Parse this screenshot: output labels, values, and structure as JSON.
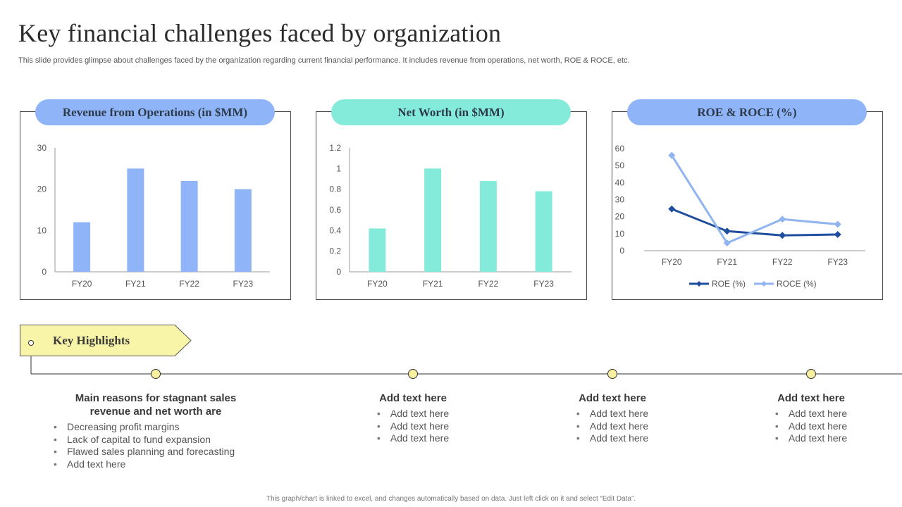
{
  "page": {
    "title": "Key financial challenges  faced by organization",
    "subtitle": "This slide provides glimpse about challenges faced by the organization regarding current financial performance. It includes revenue from operations, net worth, ROE & ROCE, etc.",
    "footer": "This graph/chart is linked to excel, and changes automatically based on data. Just left click on it and select “Edit Data”."
  },
  "colors": {
    "revenue_bar": "#8fb4f8",
    "networth_bar": "#84ebda",
    "roe_line": "#1f4e9e",
    "roce_line": "#8fb4f0",
    "pill_blue": "#8fb4f8",
    "pill_teal": "#84ebda",
    "highlight_yellow": "#f8f4a8"
  },
  "chart_data": [
    {
      "type": "bar",
      "title": "Revenue from Operations (in $MM)",
      "categories": [
        "FY20",
        "FY21",
        "FY22",
        "FY23"
      ],
      "values": [
        12,
        25,
        22,
        20
      ],
      "ylim": [
        0,
        30
      ],
      "yticks": [
        "0",
        "10",
        "20",
        "30"
      ],
      "xlabel": "",
      "ylabel": "",
      "grid": false,
      "legend": "none"
    },
    {
      "type": "bar",
      "title": "Net Worth (in $MM)",
      "categories": [
        "FY20",
        "FY21",
        "FY22",
        "FY23"
      ],
      "values": [
        0.42,
        1.0,
        0.88,
        0.78
      ],
      "ylim": [
        0,
        1.2
      ],
      "yticks": [
        "0",
        "0.2",
        "0.4",
        "0.6",
        "0.8",
        "1",
        "1.2"
      ],
      "xlabel": "",
      "ylabel": "",
      "grid": false,
      "legend": "none"
    },
    {
      "type": "line",
      "title": "ROE & ROCE (%)",
      "categories": [
        "FY20",
        "FY21",
        "FY22",
        "FY23"
      ],
      "series": [
        {
          "name": "ROE (%)",
          "values": [
            24.5,
            11.5,
            9,
            9.5
          ]
        },
        {
          "name": "ROCE (%)",
          "values": [
            56,
            4.5,
            18.5,
            15.5
          ]
        }
      ],
      "ylim": [
        0,
        60
      ],
      "yticks": [
        "0",
        "10",
        "20",
        "30",
        "40",
        "50",
        "60"
      ],
      "xlabel": "",
      "ylabel": "",
      "grid": false,
      "legend": "bottom"
    }
  ],
  "highlights": {
    "label": "Key Highlights",
    "columns": [
      {
        "heading": "Main reasons for stagnant sales revenue and net worth are",
        "items": [
          "Decreasing profit margins",
          "Lack of capital to fund expansion",
          "Flawed sales planning and forecasting",
          "Add text here"
        ]
      },
      {
        "heading": "Add text here",
        "items": [
          "Add text here",
          "Add text here",
          "Add text here"
        ]
      },
      {
        "heading": "Add text here",
        "items": [
          "Add text here",
          "Add text here",
          "Add text here"
        ]
      },
      {
        "heading": "Add text here",
        "items": [
          "Add text here",
          "Add text here",
          "Add text here"
        ]
      }
    ]
  }
}
